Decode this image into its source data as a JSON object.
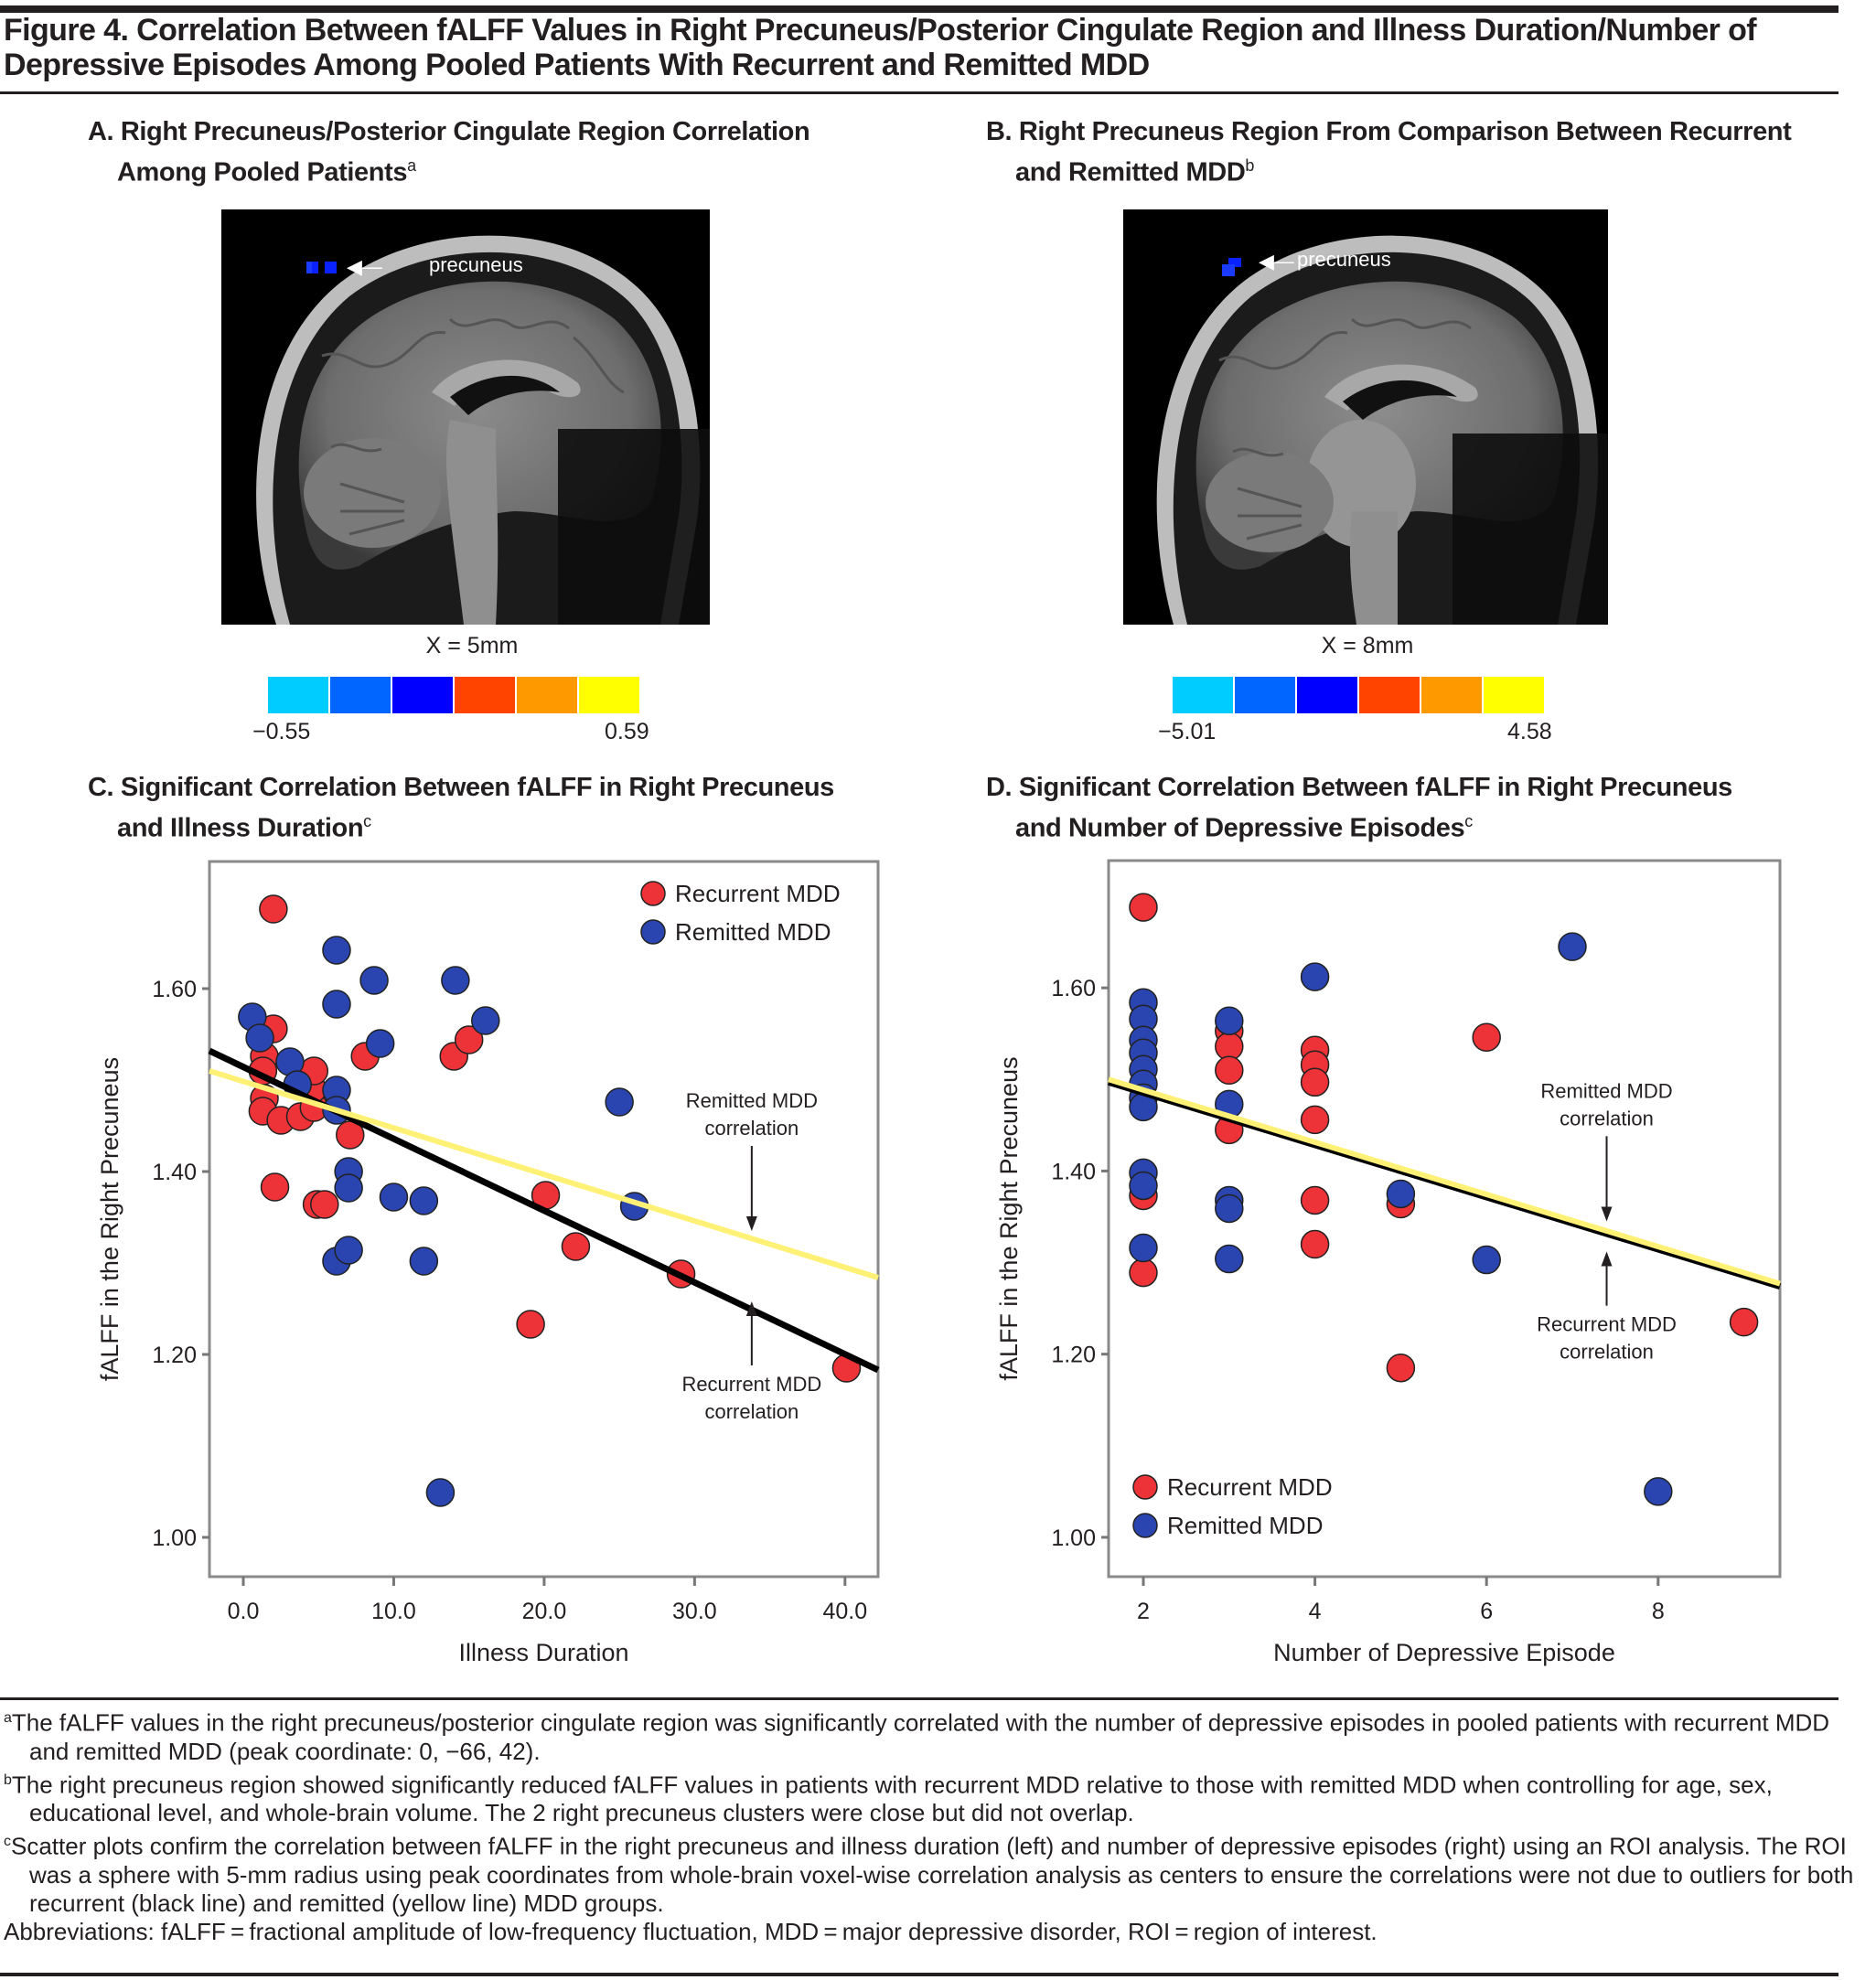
{
  "figure": {
    "title": "Figure 4. Correlation Between fALFF Values in Right Precuneus/Posterior Cingulate Region and Illness Duration/Number of Depressive Episodes Among Pooled Patients With Recurrent and Remitted MDD"
  },
  "panelA": {
    "title_line1": "A. Right Precuneus/Posterior Cingulate Region Correlation",
    "title_line2": "Among Pooled Patients",
    "title_sup": "a",
    "arrow_label": "precuneus",
    "coord_label": "X = 5mm",
    "colorbar_min": "−0.55",
    "colorbar_max": "0.59"
  },
  "panelB": {
    "title_line1": "B. Right Precuneus Region From Comparison Between Recurrent",
    "title_line2": "and Remitted MDD",
    "title_sup": "b",
    "arrow_label": "precuneus",
    "coord_label": "X = 8mm",
    "colorbar_min": "−5.01",
    "colorbar_max": "4.58"
  },
  "colorbar_colors": [
    "#00ccff",
    "#0066ff",
    "#0000ff",
    "#ff4400",
    "#ff9900",
    "#ffff00"
  ],
  "panelC": {
    "title_line1": "C. Significant Correlation Between fALFF in Right Precuneus",
    "title_line2": "and Illness Duration",
    "title_sup": "c"
  },
  "panelD": {
    "title_line1": "D. Significant Correlation Between fALFF in Right Precuneus",
    "title_line2": "and Number of Depressive Episodes",
    "title_sup": "c"
  },
  "colors": {
    "recurrent": "#ee3338",
    "remitted": "#2a45b0",
    "recurrent_line": "#000000",
    "remitted_line": "#fff176"
  },
  "chart_data": [
    {
      "type": "scatter",
      "title": "C. Significant Correlation Between fALFF in Right Precuneus and Illness Duration",
      "xlabel": "Illness Duration",
      "ylabel": "fALFF in the Right Precuneus",
      "xlim": [
        -2.25,
        42.2
      ],
      "ylim": [
        0.957,
        1.739
      ],
      "xticks": [
        0,
        10,
        20,
        30,
        40
      ],
      "xtick_labels": [
        "0.0",
        "10.0",
        "20.0",
        "30.0",
        "40.0"
      ],
      "yticks": [
        1.0,
        1.2,
        1.4,
        1.6
      ],
      "ytick_labels": [
        "1.00",
        "1.20",
        "1.40",
        "1.60"
      ],
      "grid": false,
      "legend": {
        "placement": "top-right",
        "entries": [
          "Recurrent MDD",
          "Remitted MDD"
        ]
      },
      "series": [
        {
          "name": "Recurrent MDD",
          "x": [
            2.0,
            2.0,
            1.4,
            1.3,
            1.4,
            1.3,
            2.5,
            3.8,
            4.7,
            4.6,
            4.7,
            2.1,
            4.9,
            5.4,
            7.1,
            8.1,
            14.0,
            15.0,
            20.1,
            22.1,
            19.1,
            29.1,
            40.1
          ],
          "y": [
            1.687,
            1.556,
            1.526,
            1.51,
            1.48,
            1.466,
            1.456,
            1.46,
            1.47,
            1.49,
            1.51,
            1.383,
            1.364,
            1.364,
            1.44,
            1.526,
            1.526,
            1.544,
            1.374,
            1.318,
            1.233,
            1.288,
            1.185
          ]
        },
        {
          "name": "Remitted MDD",
          "x": [
            0.6,
            1.1,
            3.1,
            6.2,
            6.2,
            8.7,
            9.1,
            14.1,
            16.1,
            6.2,
            3.6,
            6.2,
            7.0,
            7.0,
            10.0,
            12.0,
            6.2,
            7.0,
            12.0,
            25.0,
            26.0,
            13.1
          ],
          "y": [
            1.569,
            1.546,
            1.52,
            1.642,
            1.583,
            1.609,
            1.54,
            1.609,
            1.565,
            1.489,
            1.495,
            1.467,
            1.4,
            1.382,
            1.372,
            1.368,
            1.302,
            1.314,
            1.302,
            1.476,
            1.362,
            1.049
          ]
        }
      ],
      "fit_lines": [
        {
          "name": "Recurrent MDD correlation",
          "x": [
            -2.25,
            42.2
          ],
          "y": [
            1.532,
            1.183
          ]
        },
        {
          "name": "Remitted MDD correlation",
          "x": [
            -2.25,
            42.2
          ],
          "y": [
            1.51,
            1.284
          ]
        }
      ],
      "annotations": [
        {
          "line1": "Remitted MDD",
          "line2": "correlation",
          "x": 33.8,
          "y": 1.47,
          "arrow": "down",
          "arrow_to": 1.335
        },
        {
          "line1": "Recurrent MDD",
          "line2": "correlation",
          "x": 33.8,
          "y": 1.16,
          "arrow": "up",
          "arrow_to": 1.258
        }
      ]
    },
    {
      "type": "scatter",
      "title": "D. Significant Correlation Between fALFF in Right Precuneus and Number of Depressive Episodes",
      "xlabel": "Number of Depressive Episode",
      "ylabel": "fALFF in the Right Precuneus",
      "xlim": [
        1.595,
        9.42
      ],
      "ylim": [
        0.957,
        1.739
      ],
      "xticks": [
        2,
        4,
        6,
        8
      ],
      "xtick_labels": [
        "2",
        "4",
        "6",
        "8"
      ],
      "yticks": [
        1.0,
        1.2,
        1.4,
        1.6
      ],
      "ytick_labels": [
        "1.00",
        "1.20",
        "1.40",
        "1.60"
      ],
      "grid": false,
      "legend": {
        "placement": "bottom-left",
        "entries": [
          "Recurrent MDD",
          "Remitted MDD"
        ]
      },
      "series": [
        {
          "name": "Recurrent MDD",
          "x": [
            2,
            2,
            2,
            3,
            3,
            3,
            3,
            4,
            4,
            4,
            4,
            4,
            4,
            5,
            5,
            6,
            9
          ],
          "y": [
            1.688,
            1.373,
            1.289,
            1.553,
            1.536,
            1.51,
            1.445,
            1.532,
            1.516,
            1.497,
            1.456,
            1.368,
            1.32,
            1.364,
            1.185,
            1.546,
            1.235
          ]
        },
        {
          "name": "Remitted MDD",
          "x": [
            2,
            2,
            2,
            2,
            2,
            2,
            2,
            2,
            2,
            2,
            2,
            3,
            3,
            3,
            3,
            3,
            4,
            5,
            6,
            7,
            8
          ],
          "y": [
            1.584,
            1.566,
            1.543,
            1.529,
            1.511,
            1.495,
            1.48,
            1.47,
            1.398,
            1.384,
            1.316,
            1.564,
            1.473,
            1.368,
            1.359,
            1.304,
            1.612,
            1.375,
            1.303,
            1.645,
            1.05
          ]
        }
      ],
      "fit_lines": [
        {
          "name": "Recurrent MDD correlation",
          "x": [
            1.595,
            9.42
          ],
          "y": [
            1.497,
            1.274
          ]
        },
        {
          "name": "Remitted MDD correlation",
          "x": [
            1.595,
            9.42
          ],
          "y": [
            1.5,
            1.277
          ]
        }
      ],
      "annotations": [
        {
          "line1": "Remitted MDD",
          "line2": "correlation",
          "x": 7.4,
          "y": 1.48,
          "arrow": "down",
          "arrow_to": 1.345
        },
        {
          "line1": "Recurrent MDD",
          "line2": "correlation",
          "x": 7.4,
          "y": 1.225,
          "arrow": "up",
          "arrow_to": 1.312
        }
      ]
    }
  ],
  "footnotes": {
    "a_mark": "a",
    "a_text": "The fALFF values in the right precuneus/posterior cingulate region was significantly correlated with the number of depressive episodes in pooled patients with recurrent MDD and remitted MDD (peak coordinate: 0, −66, 42).",
    "b_mark": "b",
    "b_text": "The right precuneus region showed significantly reduced fALFF values in patients with recurrent MDD relative to those with remitted MDD when controlling for age, sex, educational level, and whole-brain volume. The 2 right precuneus clusters were close but did not overlap.",
    "c_mark": "c",
    "c_text": "Scatter plots confirm the correlation between fALFF in the right precuneus and illness duration (left) and number of depressive episodes (right) using an ROI analysis. The ROI was a sphere with 5-mm radius using peak coordinates from whole-brain voxel-wise correlation analysis as centers to ensure the correlations were not due to outliers for both recurrent (black line) and remitted (yellow line) MDD groups.",
    "abbreviations": "Abbreviations: fALFF = fractional amplitude of low-frequency fluctuation, MDD = major depressive disorder, ROI = region of interest."
  }
}
